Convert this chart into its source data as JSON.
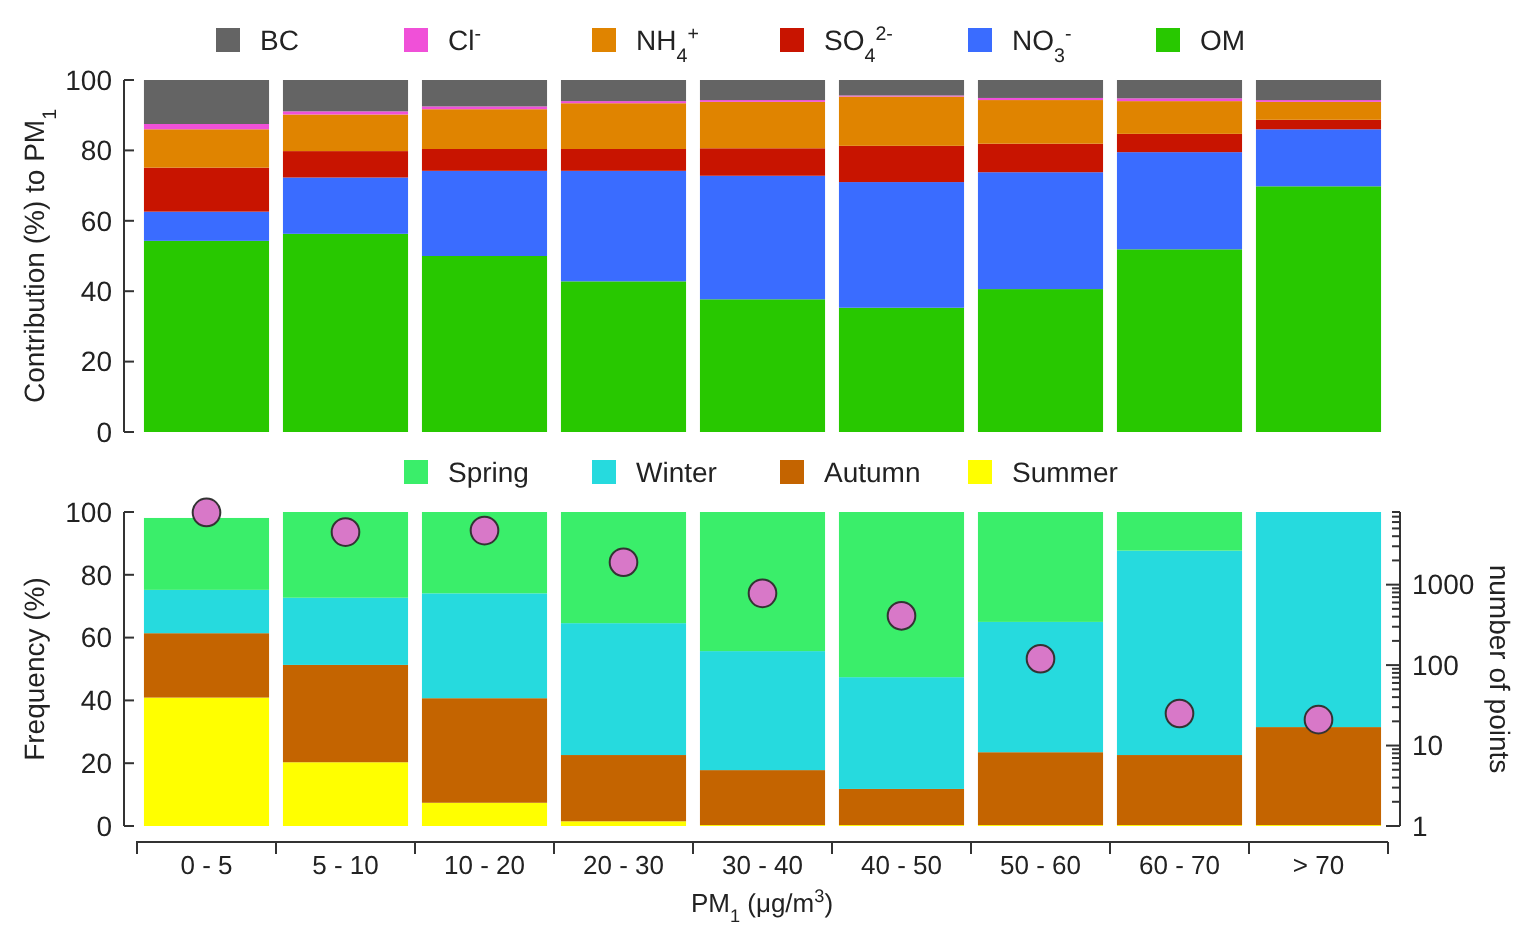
{
  "chart_data": [
    {
      "type": "bar",
      "stacked": true,
      "ylabel": "Contribution (%) to PM$_{1}$",
      "categories": [
        null,
        null,
        null,
        null,
        null,
        null,
        null,
        null,
        null
      ],
      "ylim": [
        0,
        100
      ],
      "yticks": [
        0,
        20,
        40,
        60,
        80,
        100
      ],
      "tick_labels": "y",
      "legend": "top",
      "series": [
        {
          "name": "OM",
          "color": "#28c800",
          "values": [
            54.3,
            56.3,
            50,
            42.8,
            37.7,
            35.3,
            40.6,
            51.9,
            69.8
          ]
        },
        {
          "name": "NO$_{3}$$^{-}$",
          "color": "#3a6cff",
          "values": [
            8.3,
            16,
            24.2,
            31.4,
            35.1,
            35.7,
            33.2,
            27.6,
            16.2
          ]
        },
        {
          "name": "SO$_{4}$$^{2-}$",
          "color": "#c81400",
          "values": [
            12.5,
            7.5,
            6.2,
            6.2,
            7.8,
            10.3,
            8.1,
            5.2,
            2.7
          ]
        },
        {
          "name": "NH$_{4}$$^{+}$",
          "color": "#e08400",
          "values": [
            10.9,
            10.4,
            11.3,
            13,
            13.2,
            14,
            12.4,
            9.3,
            5.1
          ]
        },
        {
          "name": "Cl$^{-}$",
          "color": "#f050d8",
          "values": [
            1.5,
            0.9,
            0.8,
            0.6,
            0.5,
            0.3,
            0.6,
            0.8,
            0.5
          ]
        },
        {
          "name": "BC",
          "color": "#646464",
          "values": [
            12.5,
            8.9,
            7.5,
            6,
            5.7,
            4.4,
            5.1,
            5.2,
            5.7
          ]
        }
      ]
    },
    {
      "type": "bar",
      "stacked": true,
      "xlabel": "PM$_{1}$ (μg/m$^{3}$)",
      "ylabel": "Frequency (%)",
      "y2label": "number of points",
      "categories": [
        "0 - 5",
        "5 - 10",
        "10 - 20",
        "20 - 30",
        "30 - 40",
        "40 - 50",
        "50 - 60",
        "60 - 70",
        "> 70"
      ],
      "ylim": [
        0,
        100
      ],
      "yticks": [
        0,
        20,
        40,
        60,
        80,
        100
      ],
      "log": "y2",
      "y2lim": [
        1,
        8000
      ],
      "y2ticks": [
        1,
        {
          "value": 2,
          "label": null
        },
        {
          "value": 3,
          "label": null
        },
        {
          "value": 4,
          "label": null
        },
        {
          "value": 5,
          "label": null
        },
        {
          "value": 6,
          "label": null
        },
        {
          "value": 7,
          "label": null
        },
        {
          "value": 8,
          "label": null
        },
        {
          "value": 9,
          "label": null
        },
        10,
        {
          "value": 20,
          "label": null
        },
        {
          "value": 30,
          "label": null
        },
        {
          "value": 40,
          "label": null
        },
        {
          "value": 50,
          "label": null
        },
        {
          "value": 60,
          "label": null
        },
        {
          "value": 70,
          "label": null
        },
        {
          "value": 80,
          "label": null
        },
        {
          "value": 90,
          "label": null
        },
        100,
        {
          "value": 200,
          "label": null
        },
        {
          "value": 300,
          "label": null
        },
        {
          "value": 400,
          "label": null
        },
        {
          "value": 500,
          "label": null
        },
        {
          "value": 600,
          "label": null
        },
        {
          "value": 700,
          "label": null
        },
        {
          "value": 800,
          "label": null
        },
        {
          "value": 900,
          "label": null
        },
        1000,
        {
          "value": 2000,
          "label": null
        },
        {
          "value": 3000,
          "label": null
        },
        {
          "value": 4000,
          "label": null
        },
        {
          "value": 5000,
          "label": null
        },
        {
          "value": 6000,
          "label": null
        },
        {
          "value": 7000,
          "label": null
        },
        {
          "value": 8000,
          "label": null
        }
      ],
      "legend": "top",
      "series": [
        {
          "name": "Summer",
          "color": "#ffff00",
          "values": [
            40.9,
            20.3,
            7.4,
            1.5,
            0.3,
            0.3,
            0.3,
            0.3,
            0.3
          ]
        },
        {
          "name": "Autumn",
          "color": "#c46400",
          "values": [
            20.5,
            31,
            33.3,
            21.1,
            17.5,
            11.5,
            23.2,
            22.3,
            31.2
          ]
        },
        {
          "name": "Winter",
          "color": "#26dade",
          "values": [
            13.8,
            21.4,
            33.4,
            42,
            37.9,
            35.6,
            41.5,
            65.1,
            68.5
          ]
        },
        {
          "name": "Spring",
          "color": "#3aee6a",
          "values": [
            22.9,
            27.3,
            25.9,
            35.4,
            44.3,
            52.6,
            35,
            12.3,
            0
          ]
        },
        {
          "type": "scatter",
          "axis": "y2",
          "marker": "circle",
          "color": "#d878c8",
          "x": [
            "0 - 5",
            "5 - 10",
            "10 - 20",
            "20 - 30",
            "30 - 40",
            "40 - 50",
            "50 - 60",
            "60 - 70",
            "> 70"
          ],
          "values": [
            7900,
            4500,
            4700,
            1900,
            780,
            410,
            120,
            25,
            21
          ]
        }
      ]
    }
  ]
}
